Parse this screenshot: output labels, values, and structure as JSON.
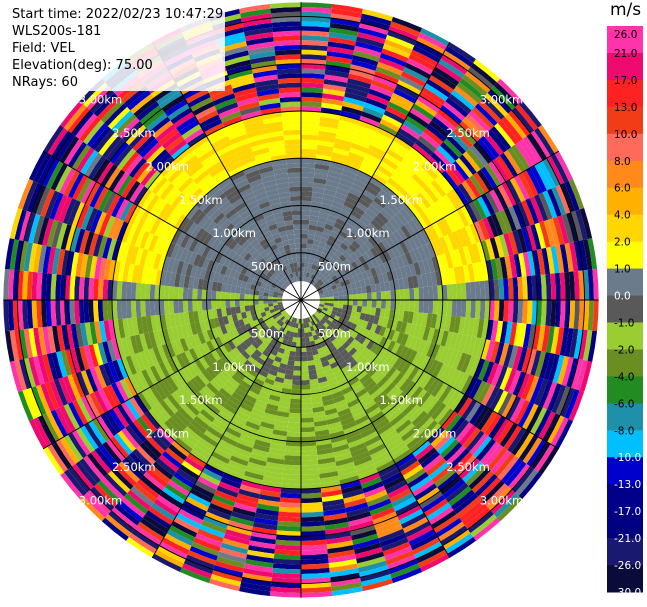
{
  "meta": {
    "start_time": "Start time: 2022/02/23 10:47:29",
    "instrument": "WLS200s-181",
    "field": "Field: VEL",
    "elevation": "Elevation(deg): 75.00",
    "nrays": "NRays: 60"
  },
  "colorbar": {
    "unit": "m/s",
    "labels": [
      "26.0",
      "21.0",
      "17.0",
      "13.0",
      "10.0",
      "8.0",
      "6.0",
      "4.0",
      "2.0",
      "1.0",
      "0.0",
      "-1.0",
      "-2.0",
      "-4.0",
      "-6.0",
      "-8.0",
      "-10.0",
      "-13.0",
      "-17.0",
      "-21.0",
      "-26.0",
      "-30.0"
    ],
    "colors": [
      "#ff33aa",
      "#ee0a6e",
      "#ff2222",
      "#f23c18",
      "#ff6a5a",
      "#ff8a1a",
      "#ffb000",
      "#ffd600",
      "#ffff00",
      "#6b7b8c",
      "#595959",
      "#9acd32",
      "#6b8e23",
      "#228b22",
      "#1e90aa",
      "#00bfff",
      "#0000cd",
      "#00008b",
      "#000080",
      "#191970",
      "#0b0b3b"
    ]
  },
  "chart_data": {
    "type": "ppi",
    "field": "VEL",
    "unit": "m/s",
    "nrays": 60,
    "elevation_deg": 75.0,
    "range_rings_labels": [
      "500m",
      "1.00km",
      "1.50km",
      "2.00km",
      "2.50km",
      "3.00km"
    ],
    "range_rings_km": [
      0.5,
      1.0,
      1.5,
      2.0,
      2.5,
      3.0
    ],
    "max_range_km": 3.15,
    "spokes_deg": [
      0,
      30,
      60,
      90,
      120,
      150,
      180,
      210,
      240,
      270,
      300,
      330
    ],
    "velocity_structure": [
      {
        "range_km": [
          0.0,
          0.5
        ],
        "description": "near-zero, mixed +/-1",
        "values": [
          0.0,
          1.0,
          -1.0
        ]
      },
      {
        "range_km": [
          0.5,
          1.5
        ],
        "description": "north half ~0 to +1, south-east -1 to -2",
        "values": [
          0.0,
          1.0,
          -1.0,
          -2.0
        ]
      },
      {
        "range_km": [
          1.5,
          2.0
        ],
        "description": "north +1 to +4, south -2 to -4",
        "values": [
          1.0,
          2.0,
          4.0,
          -2.0,
          -4.0
        ]
      },
      {
        "range_km": [
          2.0,
          3.15
        ],
        "description": "noisy, full colour range",
        "values": [
          26.0,
          -30.0
        ]
      }
    ]
  }
}
